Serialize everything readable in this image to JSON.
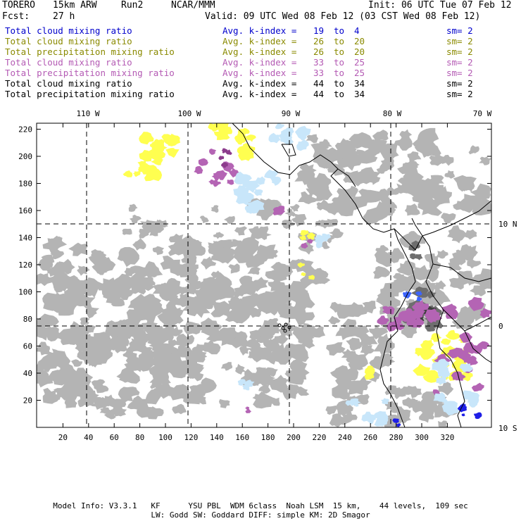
{
  "header": {
    "model": "TORERO",
    "resolution": "15km ARW",
    "run": "Run2",
    "org": "NCAR/MMM",
    "init": "Init: 06 UTC Tue 07 Feb 12",
    "fcst_label": "Fcst:",
    "fcst_value": "27 h",
    "valid": "Valid: 09 UTC Wed 08 Feb 12 (03 CST Wed 08 Feb 12)"
  },
  "legend": [
    {
      "field": "Total cloud mixing ratio",
      "kindex": "Avg. k-index =",
      "from": "19",
      "to_word": "to",
      "to": "4",
      "sm": "sm= 2",
      "color": "#0000cc"
    },
    {
      "field": "Total cloud mixing ratio",
      "kindex": "Avg. k-index =",
      "from": "26",
      "to_word": "to",
      "to": "20",
      "sm": "sm= 2",
      "color": "#8a8a00"
    },
    {
      "field": "Total precipitation mixing ratio",
      "kindex": "Avg. k-index =",
      "from": "26",
      "to_word": "to",
      "to": "20",
      "sm": "sm= 2",
      "color": "#8a8a00"
    },
    {
      "field": "Total cloud mixing ratio",
      "kindex": "Avg. k-index =",
      "from": "33",
      "to_word": "to",
      "to": "25",
      "sm": "sm= 2",
      "color": "#b45ab4"
    },
    {
      "field": "Total precipitation mixing ratio",
      "kindex": "Avg. k-index =",
      "from": "33",
      "to_word": "to",
      "to": "25",
      "sm": "sm= 2",
      "color": "#b45ab4"
    },
    {
      "field": "Total cloud mixing ratio",
      "kindex": "Avg. k-index =",
      "from": "44",
      "to_word": "to",
      "to": "34",
      "sm": "sm= 2",
      "color": "#000000"
    },
    {
      "field": "Total precipitation mixing ratio",
      "kindex": "Avg. k-index =",
      "from": "44",
      "to_word": "to",
      "to": "34",
      "sm": "sm= 2",
      "color": "#000000"
    }
  ],
  "map": {
    "lon_labels": [
      "110 W",
      "100 W",
      "90 W",
      "80 W",
      "70 W"
    ],
    "lat_labels": [
      "10 N",
      "0",
      "10 S"
    ],
    "y_ticks": [
      "220",
      "200",
      "180",
      "160",
      "140",
      "120",
      "100",
      "80",
      "60",
      "40",
      "20"
    ],
    "x_ticks": [
      "20",
      "40",
      "60",
      "80",
      "100",
      "120",
      "140",
      "160",
      "180",
      "200",
      "220",
      "240",
      "260",
      "280",
      "300",
      "320"
    ],
    "colors": {
      "gray_light": "#b4b4b4",
      "gray_dark": "#6e6e6e",
      "gray_black": "#3c3c3c",
      "yellow": "#ffff50",
      "purple": "#b464b4",
      "purple_dark": "#8c3c8c",
      "light_blue": "#c8e6fa",
      "blue": "#3c64ff",
      "deep_blue": "#1e1ee6"
    }
  },
  "footer": {
    "line1": "Model Info: V3.3.1   KF      YSU PBL  WDM 6class  Noah LSM  15 km,    44 levels,  109 sec",
    "line2": "LW: Godd SW: Goddard DIFF: simple KM: 2D Smagor"
  }
}
